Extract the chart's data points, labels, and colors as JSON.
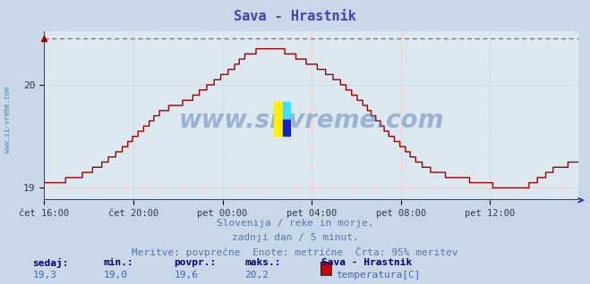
{
  "title": "Sava - Hrastnik",
  "title_color": "#4444aa",
  "bg_color": "#c8d8e8",
  "plot_bg_color": "#dce8f0",
  "grid_color": "#ffaaaa",
  "grid_linestyle": "dotted",
  "axis_color": "#3333cc",
  "line_color": "#990000",
  "dashed_line_color": "#ff3333",
  "yticks": [
    19,
    20
  ],
  "ymin": 18.88,
  "ymax": 20.52,
  "dashed_y": 20.45,
  "xtick_labels": [
    "čet 16:00",
    "čet 20:00",
    "pet 00:00",
    "pet 04:00",
    "pet 08:00",
    "pet 12:00"
  ],
  "xtick_positions": [
    0,
    96,
    192,
    288,
    384,
    480
  ],
  "total_points": 576,
  "watermark": "www.si-vreme.com",
  "subtitle1": "Slovenija / reke in morje.",
  "subtitle2": "zadnji dan / 5 minut.",
  "subtitle3": "Meritve: povprečne  Enote: metrične  Črta: 95% meritev",
  "subtitle_color": "#5577aa",
  "legend_title": "Sava - Hrastnik",
  "legend_label": "temperatura[C]",
  "legend_color": "#cc0000",
  "stats_labels": [
    "sedaj:",
    "min.:",
    "povpr.:",
    "maks.:"
  ],
  "stats_values": [
    "19,3",
    "19,0",
    "19,6",
    "20,2"
  ],
  "stats_label_color": "#000077",
  "stats_value_color": "#4466bb",
  "left_label": "www.si-vreme.com",
  "left_label_color": "#4488bb"
}
